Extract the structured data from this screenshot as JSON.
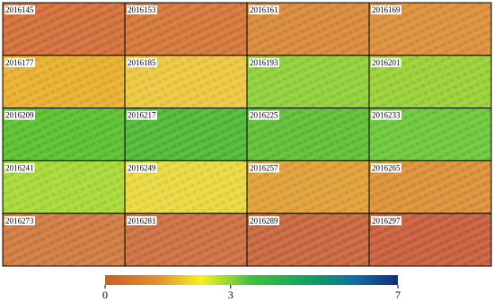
{
  "panels": [
    {
      "label": "2016145",
      "color": "#d2703a"
    },
    {
      "label": "2016153",
      "color": "#d4773a"
    },
    {
      "label": "2016161",
      "color": "#d88a3a"
    },
    {
      "label": "2016169",
      "color": "#dc8f3c"
    },
    {
      "label": "2016177",
      "color": "#e8b030"
    },
    {
      "label": "2016185",
      "color": "#ecc840"
    },
    {
      "label": "2016193",
      "color": "#8fd03a"
    },
    {
      "label": "2016201",
      "color": "#9ad038"
    },
    {
      "label": "2016209",
      "color": "#5cc030"
    },
    {
      "label": "2016217",
      "color": "#50b838"
    },
    {
      "label": "2016225",
      "color": "#60c038"
    },
    {
      "label": "2016233",
      "color": "#6cc83a"
    },
    {
      "label": "2016241",
      "color": "#a8d838"
    },
    {
      "label": "2016249",
      "color": "#e8d840"
    },
    {
      "label": "2016257",
      "color": "#e0a038"
    },
    {
      "label": "2016265",
      "color": "#dc9038"
    },
    {
      "label": "2016273",
      "color": "#d07a40"
    },
    {
      "label": "2016281",
      "color": "#cc7040"
    },
    {
      "label": "2016289",
      "color": "#c8663e"
    },
    {
      "label": "2016297",
      "color": "#c8603e"
    }
  ],
  "colorbar": {
    "lim": [
      0,
      7
    ],
    "ticks": [
      0,
      3,
      7
    ]
  }
}
